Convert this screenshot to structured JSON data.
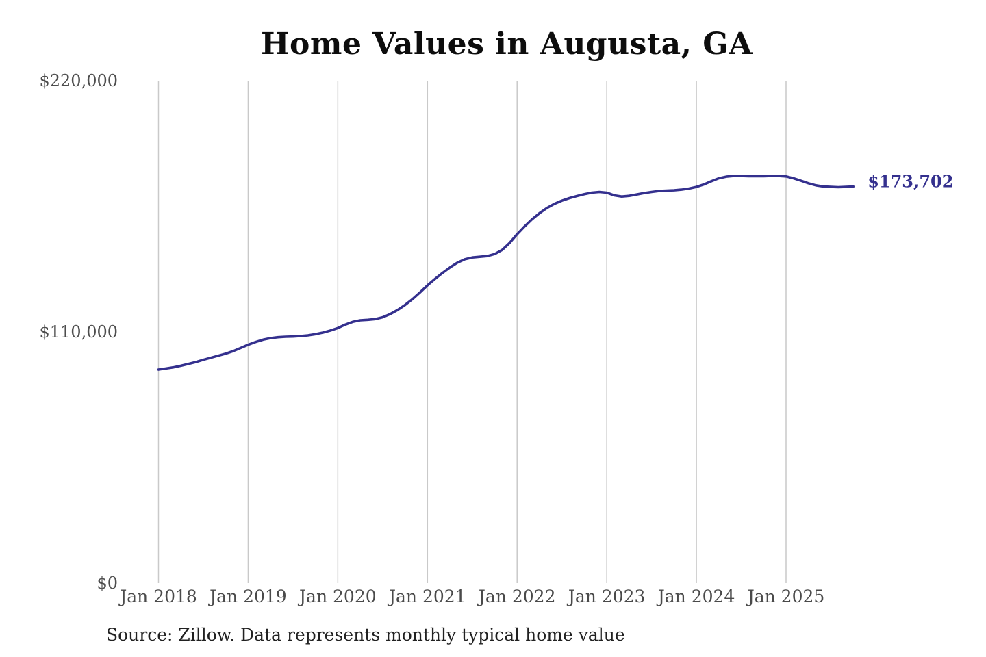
{
  "title": "Home Values in Augusta, GA",
  "source_note": "Source: Zillow. Data represents monthly typical home value",
  "end_label": "$173,702",
  "colors": {
    "line": "#34308e",
    "grid": "#c9c9c9",
    "axis_text": "#4a4a4a",
    "title_text": "#0d0d0d"
  },
  "chart_data": {
    "type": "line",
    "title": "Home Values in Augusta, GA",
    "xlabel": "",
    "ylabel": "",
    "ylim": [
      0,
      220000
    ],
    "y_tick_labels": [
      "$220,000",
      "$110,000",
      "$0"
    ],
    "y_tick_values": [
      220000,
      110000,
      0
    ],
    "x_tick_labels": [
      "Jan 2018",
      "Jan 2019",
      "Jan 2020",
      "Jan 2021",
      "Jan 2022",
      "Jan 2023",
      "Jan 2024",
      "Jan 2025"
    ],
    "grid": "vertical-only",
    "legend": "none",
    "frequency": "monthly",
    "start_month": "Jan 2018",
    "end_month": "Oct 2025",
    "latest_value": 173702,
    "latest_value_label": "$173,702",
    "values": [
      93500,
      94000,
      94500,
      95200,
      96000,
      96800,
      97800,
      98700,
      99600,
      100500,
      101600,
      103000,
      104400,
      105600,
      106600,
      107300,
      107700,
      107900,
      108000,
      108200,
      108500,
      109000,
      109700,
      110600,
      111700,
      113200,
      114400,
      115100,
      115300,
      115600,
      116400,
      117800,
      119600,
      121800,
      124400,
      127300,
      130400,
      133200,
      135800,
      138200,
      140300,
      141800,
      142600,
      142900,
      143200,
      144100,
      145900,
      149000,
      152800,
      156200,
      159300,
      162000,
      164300,
      166100,
      167500,
      168600,
      169500,
      170300,
      171000,
      171300,
      171000,
      169800,
      169300,
      169600,
      170200,
      170800,
      171300,
      171700,
      171900,
      172000,
      172300,
      172800,
      173500,
      174600,
      176000,
      177300,
      178000,
      178300,
      178300,
      178200,
      178200,
      178200,
      178300,
      178300,
      178100,
      177300,
      176200,
      175100,
      174200,
      173700,
      173500,
      173400,
      173500,
      173702
    ]
  }
}
